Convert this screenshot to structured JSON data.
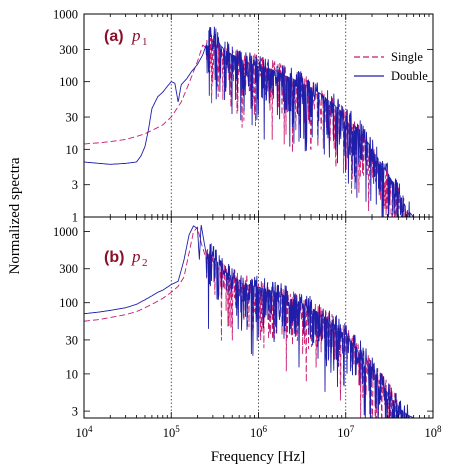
{
  "chart_data": {
    "type": "line",
    "xlabel": "Frequency  [Hz]",
    "ylabel": "Normalized spectra",
    "x_scale": "log",
    "y_scale": "log",
    "xlim": [
      10000,
      100000000
    ],
    "x_ticks": [
      {
        "value": 10000,
        "base": "10",
        "exp": "4"
      },
      {
        "value": 100000,
        "base": "10",
        "exp": "5"
      },
      {
        "value": 1000000,
        "base": "10",
        "exp": "6"
      },
      {
        "value": 10000000,
        "base": "10",
        "exp": "7"
      },
      {
        "value": 100000000,
        "base": "10",
        "exp": "8"
      }
    ],
    "vertical_gridlines": [
      100000,
      1000000,
      10000000
    ],
    "colors": {
      "single": "#c8196e",
      "double": "#1e1eaa",
      "panel_label": "#8b0f2a"
    },
    "legend": {
      "placement": "top-right",
      "entries": [
        {
          "name": "Single",
          "style": "dashed"
        },
        {
          "name": "Double",
          "style": "solid"
        }
      ]
    },
    "panels": [
      {
        "tag": "(a)",
        "var": "p",
        "sub": "1",
        "ylim": [
          1,
          1000
        ],
        "y_ticks": [
          1,
          3,
          10,
          30,
          100,
          300,
          1000
        ],
        "series": [
          {
            "name": "Single",
            "x": [
              10000,
              15000,
              20000,
              30000,
              40000,
              50000,
              60000,
              80000,
              100000,
              130000,
              160000,
              200000,
              230000,
              260000,
              290000,
              310000,
              340000,
              400000,
              500000,
              700000,
              1000000,
              1500000,
              2000000,
              3000000,
              4000000,
              5000000,
              7000000,
              10000000,
              15000000,
              20000000,
              30000000,
              40000000,
              50000000,
              55000000
            ],
            "y": [
              12,
              12.5,
              13,
              14,
              15.5,
              17,
              19,
              23,
              30,
              50,
              95,
              200,
              350,
              300,
              320,
              380,
              330,
              250,
              220,
              195,
              175,
              150,
              125,
              95,
              75,
              60,
              42,
              27,
              15,
              8.5,
              3.8,
              2,
              1.2,
              1
            ]
          },
          {
            "name": "Double",
            "x": [
              10000,
              15000,
              20000,
              30000,
              40000,
              45000,
              50000,
              55000,
              60000,
              70000,
              80000,
              90000,
              100000,
              110000,
              120000,
              130000,
              150000,
              170000,
              200000,
              230000,
              260000,
              290000,
              320000,
              400000,
              500000,
              700000,
              1000000,
              1500000,
              2000000,
              3000000,
              4000000,
              5000000,
              7000000,
              10000000,
              15000000,
              20000000,
              30000000,
              40000000,
              50000000,
              60000000
            ],
            "y": [
              6.5,
              6.2,
              6,
              6.2,
              6.5,
              8,
              11,
              20,
              40,
              60,
              70,
              85,
              100,
              95,
              50,
              90,
              110,
              140,
              180,
              250,
              400,
              480,
              450,
              300,
              250,
              200,
              170,
              145,
              125,
              100,
              82,
              68,
              48,
              32,
              18,
              10,
              4.5,
              2.4,
              1.3,
              1
            ]
          }
        ]
      },
      {
        "tag": "(b)",
        "var": "p",
        "sub": "2",
        "ylim": [
          2.4,
          1600
        ],
        "y_ticks": [
          3,
          10,
          30,
          100,
          300,
          1000
        ],
        "series": [
          {
            "name": "Single",
            "x": [
              10000,
              15000,
              20000,
              30000,
              40000,
              50000,
              60000,
              80000,
              100000,
              120000,
              140000,
              160000,
              180000,
              200000,
              220000,
              250000,
              300000,
              350000,
              400000,
              500000,
              700000,
              1000000,
              1500000,
              2000000,
              3000000,
              4000000,
              5000000,
              7000000,
              10000000,
              15000000,
              20000000,
              30000000,
              40000000,
              50000000,
              55000000
            ],
            "y": [
              55,
              58,
              62,
              68,
              75,
              85,
              95,
              115,
              140,
              170,
              230,
              500,
              1000,
              1150,
              700,
              420,
              380,
              300,
              260,
              210,
              180,
              155,
              130,
              115,
              92,
              78,
              65,
              48,
              32,
              18,
              11,
              5.5,
              3.5,
              2.6,
              2.4
            ]
          },
          {
            "name": "Double",
            "x": [
              10000,
              15000,
              20000,
              30000,
              40000,
              50000,
              60000,
              70000,
              80000,
              90000,
              100000,
              110000,
              120000,
              140000,
              160000,
              180000,
              200000,
              210000,
              220000,
              250000,
              300000,
              350000,
              400000,
              500000,
              700000,
              1000000,
              1500000,
              2000000,
              3000000,
              4000000,
              5000000,
              7000000,
              10000000,
              15000000,
              20000000,
              30000000,
              40000000,
              50000000,
              60000000
            ],
            "y": [
              70,
              74,
              78,
              85,
              95,
              110,
              125,
              140,
              150,
              165,
              180,
              190,
              200,
              400,
              900,
              1200,
              1100,
              400,
              1250,
              500,
              450,
              350,
              280,
              230,
              190,
              165,
              145,
              125,
              100,
              85,
              72,
              52,
              35,
              20,
              12,
              5.5,
              3.5,
              2.7,
              2.4
            ]
          }
        ]
      }
    ]
  }
}
